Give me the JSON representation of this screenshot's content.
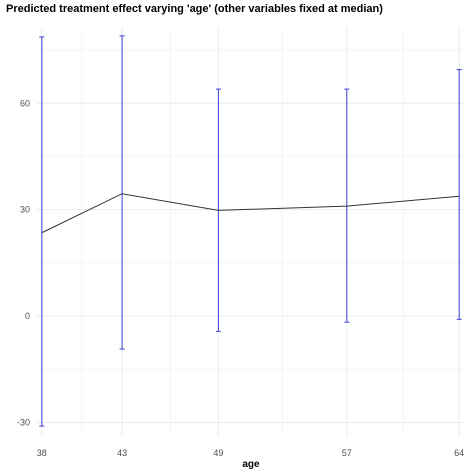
{
  "chart_data": {
    "type": "line",
    "title": "Predicted treatment effect varying 'age' (other variables fixed at median)",
    "xlabel": "age",
    "ylabel": "",
    "x": [
      38,
      43,
      49,
      57,
      64
    ],
    "series": [
      {
        "values": [
          23.5,
          34.5,
          29.8,
          31.0,
          33.8
        ],
        "lower": [
          -31.0,
          -9.3,
          -4.3,
          -1.7,
          -0.9
        ],
        "upper": [
          78.7,
          79.0,
          64.0,
          64.0,
          69.5
        ]
      }
    ],
    "xticks": [
      38,
      43,
      49,
      57,
      64
    ],
    "yticks": [
      -30,
      0,
      30,
      60
    ],
    "xlim": [
      37.7,
      64.3
    ],
    "ylim": [
      -33.8,
      81.5
    ],
    "grid": true,
    "colors": {
      "line": "#333333",
      "errorbar": "#3d3dd6",
      "grid": "#ebebeb"
    }
  }
}
